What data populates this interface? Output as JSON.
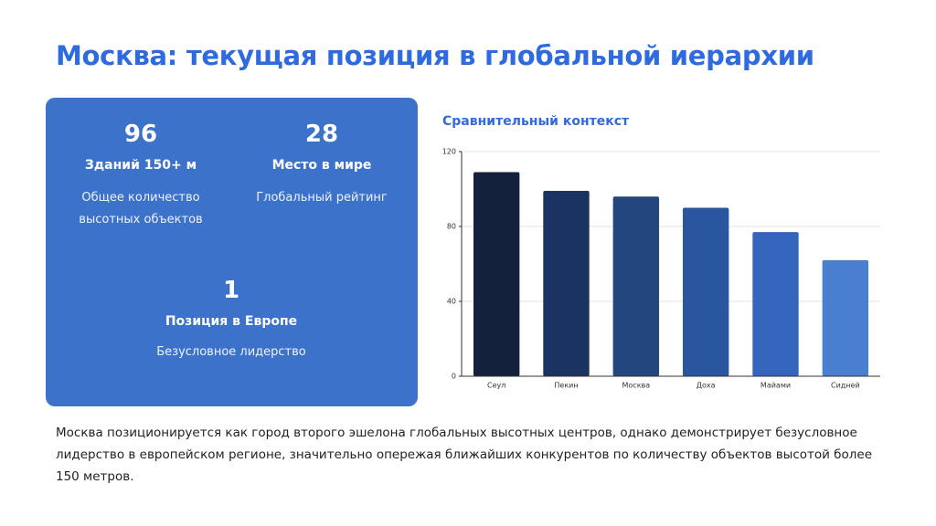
{
  "title": "Москва: текущая позиция в глобальной иерархии",
  "stats": [
    {
      "value": 96,
      "label": "Зданий 150+ м",
      "description": "Общее количество высотных объектов"
    },
    {
      "value": 28,
      "label": "Место в мире",
      "description": "Глобальный рейтинг"
    },
    {
      "value": 1,
      "label": "Позиция в Европе",
      "description": "Безусловное лидерство"
    }
  ],
  "chart_data": {
    "type": "bar",
    "title": "Сравнительный контекст",
    "categories": [
      "Сеул",
      "Пекин",
      "Москва",
      "Доха",
      "Майами",
      "Сидней"
    ],
    "values": [
      109,
      99,
      96,
      90,
      77,
      62
    ],
    "colors": [
      "#14213d",
      "#1b3360",
      "#24467e",
      "#2a56a0",
      "#3465bc",
      "#4a7fd0"
    ],
    "ylim": [
      0,
      120
    ],
    "yticks": [
      0,
      40,
      80,
      120
    ],
    "grid": true
  },
  "paragraph": "Москва позиционируется как город второго эшелона глобальных высотных центров, однако демонстрирует безусловное лидерство в европейском регионе, значительно опережая ближайших конкурентов по количеству объектов высотой более 150 метров."
}
